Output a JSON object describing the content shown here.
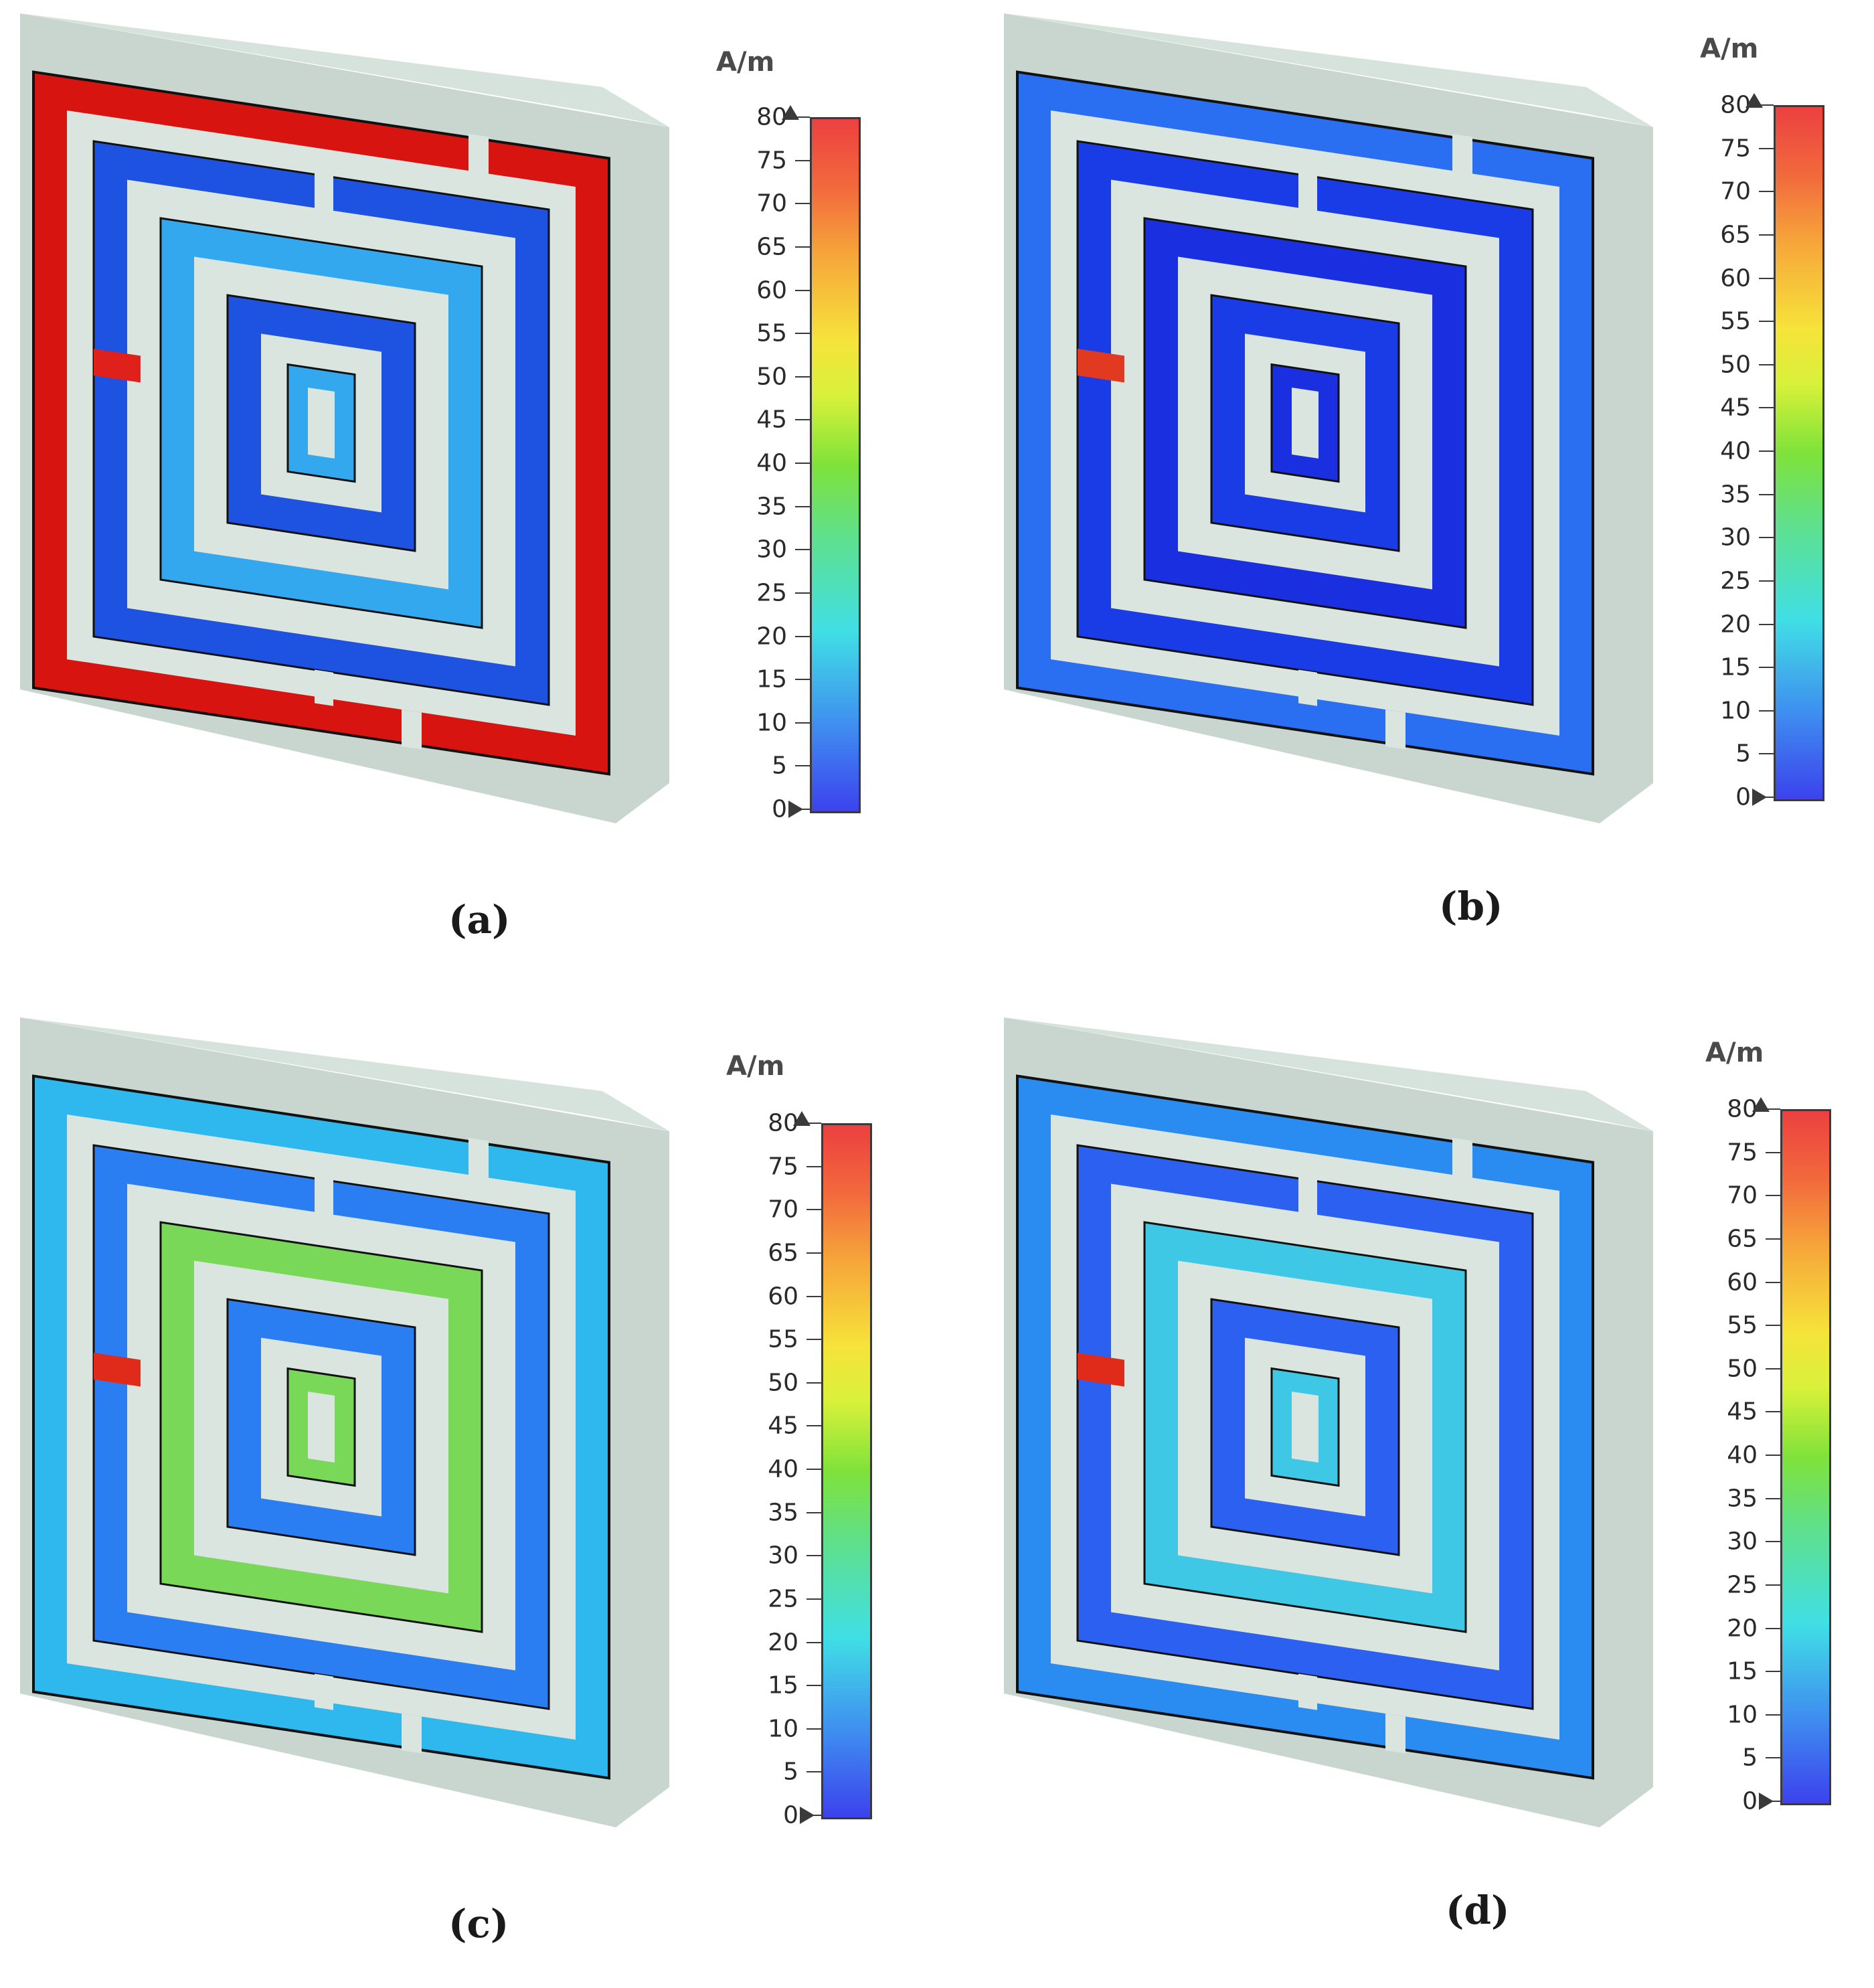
{
  "colorbar": {
    "unit": "A/m",
    "ticks": [
      "80",
      "75",
      "70",
      "65",
      "60",
      "55",
      "50",
      "45",
      "40",
      "35",
      "30",
      "25",
      "20",
      "15",
      "10",
      "5",
      "0"
    ],
    "max": 80,
    "min": 0,
    "colors": [
      "#3c42ee",
      "#3f8bf0",
      "#40dfe6",
      "#5fe08a",
      "#7fe23a",
      "#d8f13a",
      "#f6e33a",
      "#f6a83a",
      "#f26a3c",
      "#ec4040"
    ]
  },
  "panels": [
    {
      "caption": "(a)",
      "outer_color": "#d7140f",
      "mid_color": "#1e52e0",
      "inner_color": "#33a8ee",
      "accent_color": "#e0201a"
    },
    {
      "caption": "(b)",
      "outer_color": "#2a6ff2",
      "mid_color": "#1a3ce6",
      "inner_color": "#1a30e0",
      "accent_color": "#e23a20"
    },
    {
      "caption": "(c)",
      "outer_color": "#2fb8ee",
      "mid_color": "#2a7ef2",
      "inner_color": "#7ad858",
      "accent_color": "#e02a1a"
    },
    {
      "caption": "(d)",
      "outer_color": "#2a8cf0",
      "mid_color": "#2b60f0",
      "inner_color": "#3fc8e6",
      "accent_color": "#e02a1a"
    }
  ]
}
